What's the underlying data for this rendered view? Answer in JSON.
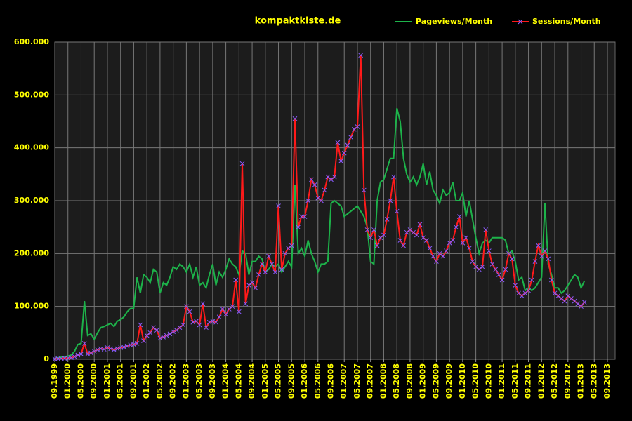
{
  "chart_data": {
    "type": "line",
    "title": "kompaktkiste.de",
    "categories": [
      "09.1999",
      null,
      null,
      null,
      "01.2000",
      null,
      null,
      null,
      "05.2000",
      null,
      null,
      null,
      "09.2000",
      null,
      null,
      null,
      "01.2001",
      null,
      null,
      null,
      "05.2001",
      null,
      null,
      null,
      "09.2001",
      null,
      null,
      null,
      "01.2002",
      null,
      null,
      null,
      "05.2002",
      null,
      null,
      null,
      "09.2002",
      null,
      null,
      null,
      "01.2003",
      null,
      null,
      null,
      "05.2003",
      null,
      null,
      null,
      "09.2003",
      null,
      null,
      null,
      "01.2004",
      null,
      null,
      null,
      "05.2004",
      null,
      null,
      null,
      "09.2004",
      null,
      null,
      null,
      "01.2005",
      null,
      null,
      null,
      "05.2005",
      null,
      null,
      null,
      "09.2005",
      null,
      null,
      null,
      "01.2006",
      null,
      null,
      null,
      "05.2006",
      null,
      null,
      null,
      "09.2006",
      null,
      null,
      null,
      "01.2007",
      null,
      null,
      null,
      "05.2007",
      null,
      null,
      null,
      "09.2007",
      null,
      null,
      null,
      "01.2008",
      null,
      null,
      null,
      "05.2008",
      null,
      null,
      null,
      "09.2008",
      null,
      null,
      null,
      "01.2009",
      null,
      null,
      null,
      "05.2009",
      null,
      null,
      null,
      "09.2009",
      null,
      null,
      null,
      "01.2010",
      null,
      null,
      null,
      "05.2010",
      null,
      null,
      null,
      "09.2010",
      null,
      null,
      null,
      "01.2011",
      null,
      null,
      null,
      "05.2011",
      null,
      null,
      null,
      "09.2011",
      null,
      null,
      null,
      "01.2012",
      null,
      null,
      null,
      "05.2012",
      null,
      null,
      null,
      "09.2012",
      null,
      null,
      null,
      "01.2013",
      null,
      null,
      null,
      "05.2013",
      null,
      null,
      null,
      "09.2013"
    ],
    "series": [
      {
        "name": "Pageviews/Month",
        "color": "#1db34a",
        "values": [
          1000,
          3000,
          4000,
          5000,
          6000,
          8000,
          15000,
          28000,
          30000,
          110000,
          45000,
          48000,
          38000,
          50000,
          60000,
          62000,
          65000,
          68000,
          62000,
          72000,
          75000,
          80000,
          90000,
          96000,
          97000,
          155000,
          125000,
          160000,
          155000,
          145000,
          170000,
          165000,
          125000,
          145000,
          140000,
          155000,
          175000,
          170000,
          180000,
          175000,
          165000,
          180000,
          155000,
          175000,
          140000,
          145000,
          135000,
          160000,
          180000,
          140000,
          165000,
          155000,
          170000,
          190000,
          180000,
          175000,
          160000,
          205000,
          200000,
          160000,
          185000,
          185000,
          195000,
          190000,
          165000,
          170000,
          180000,
          175000,
          180000,
          165000,
          175000,
          185000,
          175000,
          330000,
          200000,
          210000,
          195000,
          225000,
          200000,
          185000,
          165000,
          180000,
          180000,
          185000,
          295000,
          300000,
          295000,
          290000,
          270000,
          275000,
          280000,
          285000,
          290000,
          280000,
          270000,
          250000,
          185000,
          180000,
          300000,
          335000,
          340000,
          360000,
          380000,
          380000,
          475000,
          450000,
          380000,
          350000,
          335000,
          345000,
          330000,
          345000,
          370000,
          330000,
          355000,
          320000,
          310000,
          295000,
          320000,
          310000,
          315000,
          335000,
          300000,
          300000,
          315000,
          270000,
          300000,
          265000,
          230000,
          200000,
          220000,
          225000,
          220000,
          230000,
          230000,
          230000,
          230000,
          225000,
          200000,
          205000,
          185000,
          150000,
          155000,
          130000,
          135000,
          130000,
          135000,
          145000,
          155000,
          295000,
          180000,
          160000,
          135000,
          135000,
          125000,
          130000,
          140000,
          150000,
          160000,
          155000,
          135000,
          148000,
          null,
          null,
          null,
          null,
          null,
          null,
          null
        ]
      },
      {
        "name": "Sessions/Month",
        "color": "#ff1a1a",
        "marker_color": "#8a5cff",
        "values": [
          500,
          1000,
          1500,
          2000,
          2000,
          3000,
          5000,
          8000,
          10000,
          30000,
          10000,
          12000,
          15000,
          18000,
          20000,
          19000,
          22000,
          20000,
          18000,
          20000,
          22000,
          23000,
          25000,
          27000,
          28000,
          30000,
          65000,
          35000,
          45000,
          50000,
          60000,
          55000,
          40000,
          42000,
          45000,
          48000,
          52000,
          55000,
          60000,
          65000,
          100000,
          90000,
          70000,
          72000,
          65000,
          105000,
          60000,
          70000,
          72000,
          70000,
          80000,
          95000,
          85000,
          95000,
          100000,
          150000,
          90000,
          370000,
          105000,
          140000,
          145000,
          135000,
          160000,
          180000,
          165000,
          195000,
          180000,
          165000,
          290000,
          170000,
          200000,
          210000,
          215000,
          455000,
          250000,
          270000,
          270000,
          300000,
          340000,
          330000,
          305000,
          300000,
          320000,
          345000,
          340000,
          345000,
          410000,
          375000,
          390000,
          405000,
          420000,
          435000,
          440000,
          575000,
          320000,
          245000,
          230000,
          245000,
          215000,
          230000,
          235000,
          265000,
          300000,
          345000,
          280000,
          225000,
          215000,
          240000,
          245000,
          240000,
          235000,
          255000,
          230000,
          225000,
          210000,
          195000,
          185000,
          200000,
          195000,
          205000,
          220000,
          225000,
          250000,
          270000,
          220000,
          230000,
          210000,
          185000,
          175000,
          170000,
          175000,
          245000,
          205000,
          180000,
          170000,
          160000,
          150000,
          170000,
          200000,
          190000,
          140000,
          125000,
          120000,
          125000,
          130000,
          150000,
          185000,
          215000,
          195000,
          205000,
          190000,
          150000,
          125000,
          120000,
          115000,
          110000,
          120000,
          115000,
          110000,
          105000,
          100000,
          108000,
          null,
          null,
          null,
          null,
          null,
          null,
          null
        ]
      }
    ],
    "ylim": [
      0,
      600000
    ],
    "yticks": [
      {
        "value": 0,
        "label": "0"
      },
      {
        "value": 100000,
        "label": "100.000"
      },
      {
        "value": 200000,
        "label": "200.000"
      },
      {
        "value": 300000,
        "label": "300.000"
      },
      {
        "value": 400000,
        "label": "400.000"
      },
      {
        "value": 500000,
        "label": "500.000"
      },
      {
        "value": 600000,
        "label": "600.000"
      }
    ],
    "grid": true,
    "legend": "top-right"
  }
}
